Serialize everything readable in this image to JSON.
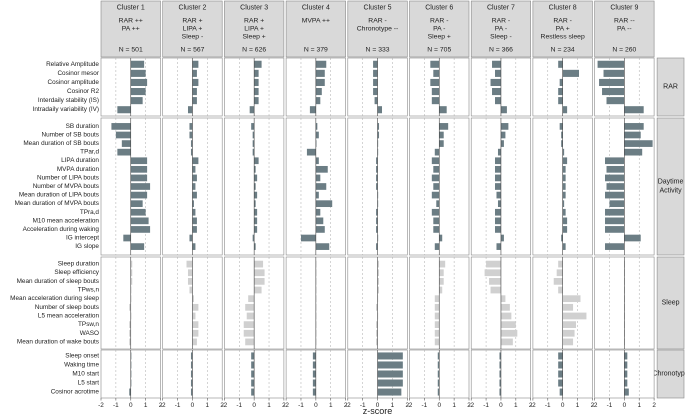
{
  "chart_data": {
    "type": "bar",
    "orientation": "horizontal",
    "faceted": true,
    "xlabel": "z-score",
    "xlim": [
      -2,
      2
    ],
    "xticks": [
      "-2",
      "-1",
      "0",
      "1",
      "2"
    ],
    "colors": {
      "RAR": "#6b7d84",
      "Daytime Activity": "#6b7d84",
      "Chronotype": "#6b7d84",
      "Sleep": "#d0d0d0",
      "strip": "#d9d9d9",
      "panel_border": "#888888",
      "zero_line": "#444444",
      "grid": "#aaaaaa"
    },
    "clusters": [
      {
        "name": "Cluster 1",
        "profile": [
          "RAR ++",
          "PA ++"
        ],
        "n": "N = 501"
      },
      {
        "name": "Cluster 2",
        "profile": [
          "RAR +",
          "LIPA +",
          "Sleep -"
        ],
        "n": "N = 567"
      },
      {
        "name": "Cluster 3",
        "profile": [
          "RAR +",
          "LIPA +",
          "Sleep +"
        ],
        "n": "N = 626"
      },
      {
        "name": "Cluster 4",
        "profile": [
          "MVPA ++"
        ],
        "n": "N = 379"
      },
      {
        "name": "Cluster 5",
        "profile": [
          "RAR -",
          "Chronotype --"
        ],
        "n": "N = 333"
      },
      {
        "name": "Cluster 6",
        "profile": [
          "RAR -",
          "PA -",
          "Sleep +"
        ],
        "n": "N = 705"
      },
      {
        "name": "Cluster 7",
        "profile": [
          "RAR -",
          "PA -",
          "Sleep -"
        ],
        "n": "N = 366"
      },
      {
        "name": "Cluster 8",
        "profile": [
          "RAR -",
          "PA +",
          "Restless sleep"
        ],
        "n": "N = 234"
      },
      {
        "name": "Cluster 9",
        "profile": [
          "RAR --",
          "PA --"
        ],
        "n": "N = 260"
      }
    ],
    "groups": [
      {
        "name": "RAR",
        "label_lines": [
          "RAR"
        ],
        "variables": [
          "Relative Amplitude",
          "Cosinor mesor",
          "Cosinor amplitude",
          "Cosinor R2",
          "Interdaily stability (IS)",
          "Intradaily variability (IV)"
        ],
        "values": [
          [
            0.9,
            1.0,
            1.1,
            1.0,
            0.8,
            -0.9
          ],
          [
            0.4,
            0.3,
            0.4,
            0.3,
            0.3,
            -0.3
          ],
          [
            0.5,
            0.3,
            0.3,
            0.3,
            0.3,
            -0.3
          ],
          [
            0.7,
            0.6,
            0.6,
            0.4,
            0.3,
            -0.4
          ],
          [
            -0.3,
            -0.3,
            -0.3,
            -0.3,
            -0.2,
            0.3
          ],
          [
            -0.6,
            -0.4,
            -0.6,
            -0.5,
            -0.5,
            0.5
          ],
          [
            -0.6,
            -0.4,
            -0.7,
            -0.6,
            -0.4,
            0.4
          ],
          [
            -0.3,
            1.1,
            -0.2,
            -0.3,
            -0.3,
            0.3
          ],
          [
            -1.8,
            -1.4,
            -1.7,
            -1.5,
            -1.2,
            1.3
          ]
        ]
      },
      {
        "name": "Daytime Activity",
        "label_lines": [
          "Daytime",
          "Activity"
        ],
        "variables": [
          "SB duration",
          "Number of SB bouts",
          "Mean duration of SB bouts",
          "TPar,d",
          "LIPA duration",
          "MVPA duration",
          "Number of LIPA bouts",
          "Number of MVPA bouts",
          "Mean duration of LIPA bouts",
          "Mean duration of MVPA bouts",
          "TPra,d",
          "M10 mean acceleration",
          "Acceleration during waking",
          "IG intercept",
          "IG slope"
        ],
        "values": [
          [
            -1.3,
            -1.0,
            -0.6,
            -0.9,
            1.1,
            1.1,
            1.1,
            1.3,
            1.1,
            0.8,
            1.0,
            1.2,
            1.3,
            -0.5,
            0.9
          ],
          [
            -0.2,
            -0.2,
            -0.1,
            -0.1,
            0.4,
            0.2,
            0.3,
            0.2,
            0.3,
            0.1,
            0.2,
            0.3,
            0.3,
            -0.2,
            0.2
          ],
          [
            -0.2,
            -0.1,
            -0.1,
            -0.1,
            0.3,
            0.1,
            0.2,
            0.1,
            0.2,
            0.1,
            0.2,
            0.2,
            0.2,
            -0.1,
            0.1
          ],
          [
            0.1,
            0.2,
            0.0,
            -0.6,
            0.2,
            0.8,
            0.3,
            0.7,
            0.2,
            1.1,
            0.3,
            0.5,
            0.6,
            -1.0,
            0.9
          ],
          [
            0.1,
            0.1,
            0.0,
            0.0,
            -0.1,
            -0.1,
            -0.1,
            -0.1,
            0.0,
            0.0,
            -0.1,
            -0.1,
            -0.1,
            0.0,
            -0.1
          ],
          [
            0.6,
            0.3,
            0.3,
            -0.3,
            -0.5,
            -0.4,
            -0.5,
            -0.4,
            -0.5,
            -0.2,
            -0.5,
            -0.4,
            -0.4,
            0.2,
            -0.3
          ],
          [
            0.5,
            0.3,
            0.2,
            -0.2,
            -0.4,
            -0.4,
            -0.4,
            -0.4,
            -0.3,
            -0.2,
            -0.4,
            -0.4,
            -0.4,
            0.2,
            -0.3
          ],
          [
            -0.2,
            -0.1,
            -0.1,
            0.1,
            0.3,
            0.2,
            0.2,
            0.2,
            0.2,
            0.1,
            0.2,
            0.3,
            0.3,
            -0.1,
            0.2
          ],
          [
            1.3,
            1.1,
            1.9,
            1.2,
            -1.3,
            -1.2,
            -1.3,
            -1.2,
            -1.3,
            -1.0,
            -1.3,
            -1.3,
            -1.3,
            1.1,
            -1.3
          ]
        ]
      },
      {
        "name": "Sleep",
        "label_lines": [
          "Sleep"
        ],
        "variables": [
          "Sleep duration",
          "Sleep efficiency",
          "Mean duration of sleep bouts",
          "TPws,n",
          "Mean acceleration during sleep",
          "Number of sleep bouts",
          "L5 mean acceleration",
          "TPsw,n",
          "WASO",
          "Mean duration of wake bouts"
        ],
        "values": [
          [
            0.1,
            0.1,
            0.1,
            0.0,
            0.0,
            -0.1,
            0.0,
            -0.1,
            -0.1,
            -0.1
          ],
          [
            -0.4,
            -0.3,
            -0.3,
            -0.2,
            0.1,
            0.4,
            0.2,
            0.4,
            0.4,
            0.3
          ],
          [
            0.6,
            0.7,
            0.7,
            0.5,
            -0.4,
            -0.6,
            -0.5,
            -0.7,
            -0.7,
            -0.6
          ],
          [
            0.0,
            0.0,
            0.0,
            0.0,
            0.0,
            0.0,
            0.0,
            0.0,
            0.0,
            0.0
          ],
          [
            0.1,
            0.1,
            0.1,
            0.1,
            0.0,
            -0.1,
            0.0,
            -0.1,
            -0.1,
            -0.1
          ],
          [
            0.4,
            0.3,
            0.3,
            0.2,
            -0.3,
            -0.3,
            -0.3,
            -0.3,
            -0.3,
            -0.3
          ],
          [
            -1.0,
            -1.1,
            -0.8,
            -0.7,
            0.3,
            0.6,
            0.7,
            1.0,
            1.1,
            0.8
          ],
          [
            -0.3,
            -0.4,
            -0.6,
            -0.3,
            1.2,
            0.7,
            1.6,
            0.9,
            0.8,
            0.7
          ],
          [
            0.0,
            0.0,
            0.0,
            0.0,
            0.0,
            0.0,
            0.0,
            0.0,
            0.0,
            0.0
          ]
        ]
      },
      {
        "name": "Chronotype",
        "label_lines": [
          "Chronotype"
        ],
        "variables": [
          "Sleep onset",
          "Waking time",
          "M10 start",
          "L5 start",
          "Cosinor acrotime"
        ],
        "values": [
          [
            0.0,
            0.0,
            0.0,
            0.0,
            -0.1
          ],
          [
            -0.1,
            -0.1,
            -0.1,
            -0.1,
            -0.1
          ],
          [
            -0.2,
            -0.2,
            -0.2,
            -0.2,
            -0.2
          ],
          [
            -0.2,
            -0.2,
            -0.2,
            -0.2,
            -0.2
          ],
          [
            1.7,
            1.7,
            1.7,
            1.7,
            1.6
          ],
          [
            -0.1,
            -0.1,
            -0.1,
            -0.1,
            -0.1
          ],
          [
            -0.1,
            -0.1,
            -0.1,
            -0.1,
            -0.1
          ],
          [
            -0.3,
            -0.3,
            -0.3,
            -0.3,
            -0.2
          ],
          [
            0.2,
            0.2,
            0.2,
            0.2,
            0.3
          ]
        ]
      }
    ]
  }
}
